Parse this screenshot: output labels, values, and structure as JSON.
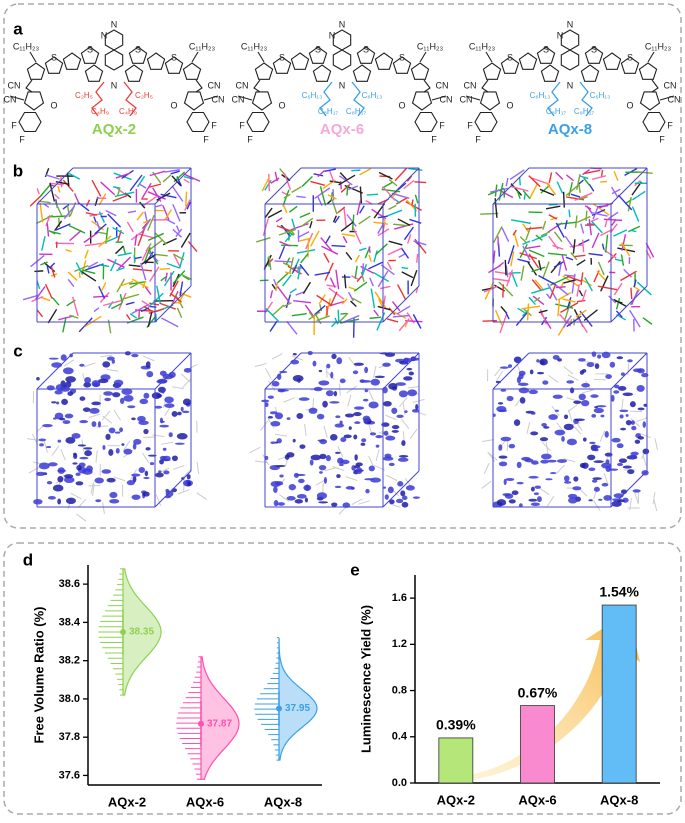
{
  "panel_labels": [
    "a",
    "b",
    "c"
  ],
  "structures": [
    {
      "name": "AQx-2",
      "name_color": "#8fd14f",
      "chain_color": "#e8413c",
      "alkyl": [
        "C₁₁H₂₃",
        "C₁₁H₂₃"
      ],
      "chains": [
        "C₂H₅",
        "C₄H₉",
        "C₄H₉",
        "C₂H₅"
      ],
      "cn": [
        "CN",
        "CN",
        "CN",
        "CN"
      ],
      "o": [
        "O",
        "O"
      ],
      "f": [
        "F",
        "F",
        "F",
        "F"
      ],
      "s": [
        "S",
        "S",
        "S",
        "S"
      ],
      "n": [
        "N",
        "N",
        "N"
      ]
    },
    {
      "name": "AQx-6",
      "name_color": "#f7a8d8",
      "chain_color": "#3aa0e8",
      "alkyl": [
        "C₁₁H₂₃",
        "C₁₁H₂₃"
      ],
      "chains": [
        "C₆H₁₃",
        "C₈H₁₇",
        "C₈H₁₇",
        "C₆H₁₃"
      ],
      "cn": [
        "CN",
        "CN",
        "CN",
        "CN"
      ],
      "o": [
        "O",
        "O"
      ],
      "f": [
        "F",
        "F",
        "F",
        "F"
      ],
      "s": [
        "S",
        "S",
        "S",
        "S"
      ],
      "n": [
        "N",
        "N",
        "N"
      ]
    },
    {
      "name": "AQx-8",
      "name_color": "#3aa0e8",
      "chain_color": "#3aa0e8",
      "alkyl": [
        "C₁₁H₂₃",
        "C₁₁H₂₃"
      ],
      "chains": [
        "C₆H₁₃",
        "C₈H₁₇",
        "C₈H₁₇",
        "C₆H₁₃"
      ],
      "cn": [
        "CN",
        "CN",
        "CN",
        "CN"
      ],
      "o": [
        "O",
        "O"
      ],
      "f": [
        "F",
        "F",
        "F",
        "F"
      ],
      "s": [
        "S",
        "S",
        "S",
        "S"
      ],
      "n": [
        "N",
        "N",
        "N"
      ]
    }
  ],
  "chart_data": [
    {
      "type": "violin",
      "panel_label": "d",
      "y_label": "Free Volume Ratio (%)",
      "categories": [
        "AQx-2",
        "AQx-6",
        "AQx-8"
      ],
      "values": [
        38.35,
        37.87,
        37.95
      ],
      "errors": [
        0.12,
        0.12,
        0.09
      ],
      "min": [
        38.02,
        37.58,
        37.68
      ],
      "max": [
        38.68,
        38.22,
        38.32
      ],
      "colors": [
        "#8fd14f",
        "#ff4fb0",
        "#3aa0e8"
      ],
      "ylim": [
        37.55,
        38.7
      ],
      "yticks": [
        37.6,
        37.8,
        {
          "value": 38,
          "label": "38.0"
        },
        38.2,
        38.4,
        38.6
      ]
    },
    {
      "type": "bar",
      "panel_label": "e",
      "y_label": "Luminescence Yield (%)",
      "categories": [
        "AQx-2",
        "AQx-6",
        "AQx-8"
      ],
      "values": [
        0.39,
        0.67,
        1.54
      ],
      "value_labels": [
        "0.39%",
        "0.67%",
        "1.54%"
      ],
      "colors": [
        "#b5e67a",
        "#f98ad0",
        "#62bdf6"
      ],
      "ylim": [
        0,
        1.8
      ],
      "yticks": [
        {
          "value": 0,
          "label": "0.0"
        },
        0.4,
        0.8,
        1.2,
        1.6
      ]
    }
  ]
}
